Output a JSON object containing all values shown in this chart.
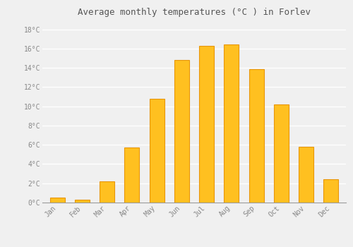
{
  "title": "Average monthly temperatures (°C ) in Forlev",
  "months": [
    "Jan",
    "Feb",
    "Mar",
    "Apr",
    "May",
    "Jun",
    "Jul",
    "Aug",
    "Sep",
    "Oct",
    "Nov",
    "Dec"
  ],
  "temperatures": [
    0.5,
    0.3,
    2.2,
    5.7,
    10.8,
    14.8,
    16.3,
    16.4,
    13.9,
    10.2,
    5.8,
    2.4
  ],
  "bar_color_main": "#FFC020",
  "bar_color_edge": "#E8960A",
  "background_color": "#F0F0F0",
  "grid_color": "#FFFFFF",
  "ytick_labels": [
    "0°C",
    "2°C",
    "4°C",
    "6°C",
    "8°C",
    "10°C",
    "12°C",
    "14°C",
    "16°C",
    "18°C"
  ],
  "ytick_values": [
    0,
    2,
    4,
    6,
    8,
    10,
    12,
    14,
    16,
    18
  ],
  "ylim": [
    0,
    19
  ],
  "title_fontsize": 9,
  "tick_fontsize": 7,
  "font_color": "#888888"
}
